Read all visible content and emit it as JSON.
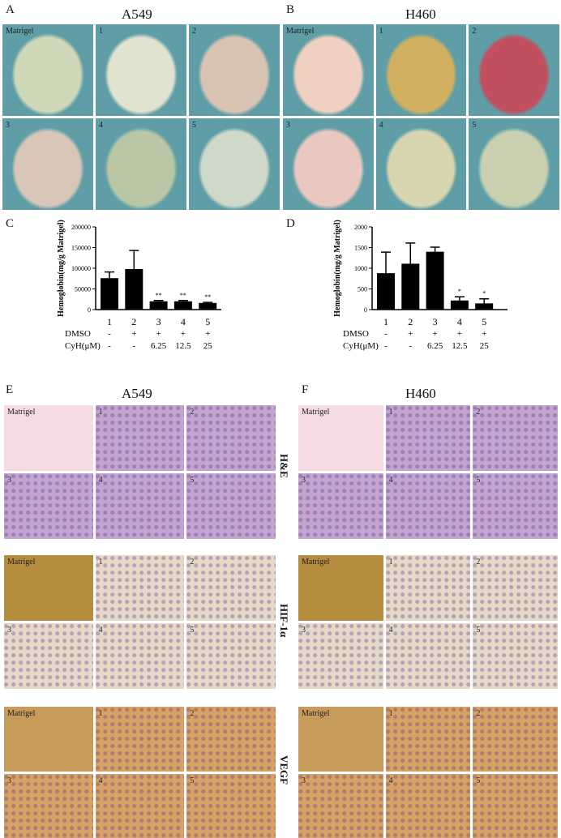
{
  "panels": {
    "A": {
      "letter": "A",
      "title": "A549",
      "labels": [
        "Matrigel",
        "1",
        "2",
        "3",
        "4",
        "5"
      ]
    },
    "B": {
      "letter": "B",
      "title": "H460",
      "labels": [
        "Matrigel",
        "1",
        "2",
        "3",
        "4",
        "5"
      ]
    },
    "C": {
      "letter": "C"
    },
    "D": {
      "letter": "D"
    },
    "E": {
      "letter": "E",
      "title": "A549"
    },
    "F": {
      "letter": "F",
      "title": "H460"
    }
  },
  "stains": [
    {
      "name": "H&E",
      "labels": [
        "Matrigel",
        "1",
        "2",
        "3",
        "4",
        "5"
      ]
    },
    {
      "name": "HIF-1α",
      "labels": [
        "Matrigel",
        "1",
        "2",
        "3",
        "4",
        "5"
      ]
    },
    {
      "name": "VEGF",
      "labels": [
        "Matrigel",
        "1",
        "2",
        "3",
        "4",
        "5"
      ]
    }
  ],
  "colors": {
    "bar": "#000000",
    "he_matrigel": "#f4dbe4",
    "he_tissue": "#c3a4cf",
    "hif_matrigel": "#b58d3f",
    "hif_tissue": "#e6d9c8",
    "vegf_matrigel": "#c79b5a",
    "vegf_tissue": "#d7a264",
    "photo_bg": "#5f9ea6"
  },
  "chart_data": [
    {
      "type": "bar",
      "panel": "C",
      "categories": [
        "1",
        "2",
        "3",
        "4",
        "5"
      ],
      "values": [
        76000,
        98000,
        20000,
        20000,
        16000
      ],
      "errors": [
        15000,
        45000,
        2000,
        2000,
        1500
      ],
      "significance": [
        "",
        "",
        "**",
        "**",
        "**"
      ],
      "ylabel": "Hemoglobin(mg/g Matrigel)",
      "ylim": [
        0,
        200000
      ],
      "yticks": [
        "0",
        "50000",
        "100000",
        "150000",
        "200000"
      ],
      "conditions": [
        {
          "label": "DMSO",
          "values": [
            "-",
            "+",
            "+",
            "+",
            "+"
          ]
        },
        {
          "label": "CyH(μM)",
          "values": [
            "-",
            "-",
            "6.25",
            "12.5",
            "25"
          ]
        }
      ]
    },
    {
      "type": "bar",
      "panel": "D",
      "categories": [
        "1",
        "2",
        "3",
        "4",
        "5"
      ],
      "values": [
        880,
        1110,
        1400,
        220,
        150
      ],
      "errors": [
        510,
        500,
        110,
        90,
        110
      ],
      "significance": [
        "",
        "",
        "",
        "*",
        "*"
      ],
      "ylabel": "Hemoglobin(mg/g Matrigel)",
      "ylim": [
        0,
        2000
      ],
      "yticks": [
        "0",
        "500",
        "1000",
        "1500",
        "2000"
      ],
      "conditions": [
        {
          "label": "DMSO",
          "values": [
            "-",
            "+",
            "+",
            "+",
            "+"
          ]
        },
        {
          "label": "CyH(μM)",
          "values": [
            "-",
            "-",
            "6.25",
            "12.5",
            "25"
          ]
        }
      ]
    }
  ]
}
